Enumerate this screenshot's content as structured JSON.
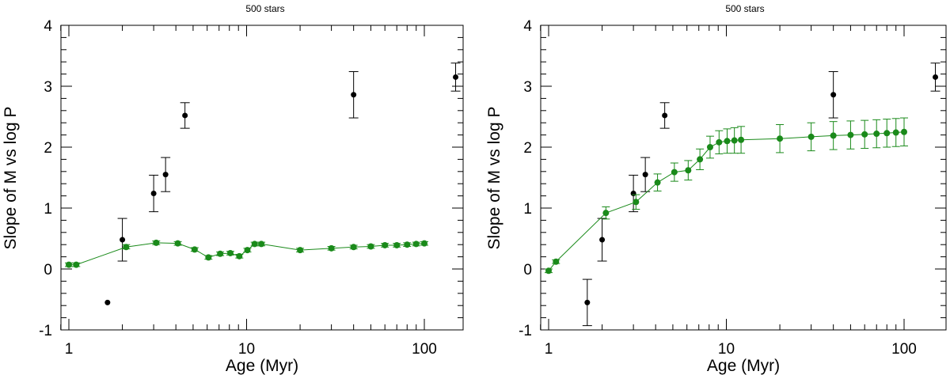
{
  "chart_data": [
    {
      "type": "scatter",
      "title": "500 stars",
      "xlabel": "Age (Myr)",
      "ylabel": "Slope of M vs log P",
      "xscale": "log",
      "xlim": [
        0.9,
        170
      ],
      "ylim": [
        -1,
        4
      ],
      "xticks": [
        1,
        10,
        100
      ],
      "xtick_labels": [
        "1",
        "10",
        "100"
      ],
      "yticks": [
        -1,
        0,
        1,
        2,
        3,
        4
      ],
      "ytick_labels": [
        "-1",
        "0",
        "1",
        "2",
        "3",
        "4"
      ],
      "grid": false,
      "series": [
        {
          "color": "#000000",
          "points": [
            {
              "x": 1.65,
              "y": -0.55,
              "lo": -0.55,
              "hi": -0.55
            },
            {
              "x": 2.0,
              "y": 0.48,
              "lo": 0.13,
              "hi": 0.83
            },
            {
              "x": 3.0,
              "y": 1.24,
              "lo": 0.94,
              "hi": 1.54
            },
            {
              "x": 3.5,
              "y": 1.55,
              "lo": 1.27,
              "hi": 1.83
            },
            {
              "x": 4.5,
              "y": 2.52,
              "lo": 2.31,
              "hi": 2.73
            },
            {
              "x": 40,
              "y": 2.86,
              "lo": 2.48,
              "hi": 3.24
            },
            {
              "x": 150,
              "y": 3.15,
              "lo": 2.92,
              "hi": 3.38
            }
          ]
        },
        {
          "color": "#1a8a1a",
          "connected": true,
          "points": [
            {
              "x": 1.0,
              "y": 0.07,
              "lo": 0.04,
              "hi": 0.1
            },
            {
              "x": 1.1,
              "y": 0.07,
              "lo": 0.04,
              "hi": 0.1
            },
            {
              "x": 2.1,
              "y": 0.36,
              "lo": 0.33,
              "hi": 0.4
            },
            {
              "x": 3.1,
              "y": 0.43,
              "lo": 0.4,
              "hi": 0.46
            },
            {
              "x": 4.1,
              "y": 0.42,
              "lo": 0.39,
              "hi": 0.45
            },
            {
              "x": 5.1,
              "y": 0.32,
              "lo": 0.29,
              "hi": 0.35
            },
            {
              "x": 6.1,
              "y": 0.19,
              "lo": 0.16,
              "hi": 0.22
            },
            {
              "x": 7.1,
              "y": 0.25,
              "lo": 0.22,
              "hi": 0.28
            },
            {
              "x": 8.1,
              "y": 0.26,
              "lo": 0.23,
              "hi": 0.29
            },
            {
              "x": 9.1,
              "y": 0.21,
              "lo": 0.18,
              "hi": 0.24
            },
            {
              "x": 10.1,
              "y": 0.31,
              "lo": 0.28,
              "hi": 0.34
            },
            {
              "x": 11.1,
              "y": 0.41,
              "lo": 0.38,
              "hi": 0.44
            },
            {
              "x": 12.1,
              "y": 0.41,
              "lo": 0.38,
              "hi": 0.44
            },
            {
              "x": 20,
              "y": 0.31,
              "lo": 0.28,
              "hi": 0.34
            },
            {
              "x": 30,
              "y": 0.34,
              "lo": 0.31,
              "hi": 0.37
            },
            {
              "x": 40,
              "y": 0.36,
              "lo": 0.33,
              "hi": 0.39
            },
            {
              "x": 50,
              "y": 0.37,
              "lo": 0.34,
              "hi": 0.4
            },
            {
              "x": 60,
              "y": 0.39,
              "lo": 0.36,
              "hi": 0.42
            },
            {
              "x": 70,
              "y": 0.39,
              "lo": 0.36,
              "hi": 0.42
            },
            {
              "x": 80,
              "y": 0.4,
              "lo": 0.37,
              "hi": 0.43
            },
            {
              "x": 90,
              "y": 0.41,
              "lo": 0.38,
              "hi": 0.44
            },
            {
              "x": 100,
              "y": 0.42,
              "lo": 0.39,
              "hi": 0.45
            }
          ]
        }
      ]
    },
    {
      "type": "scatter",
      "title": "500 stars",
      "xlabel": "Age (Myr)",
      "ylabel": "Slope of M vs log P",
      "xscale": "log",
      "xlim": [
        0.9,
        170
      ],
      "ylim": [
        -1,
        4
      ],
      "xticks": [
        1,
        10,
        100
      ],
      "xtick_labels": [
        "1",
        "10",
        "100"
      ],
      "yticks": [
        -1,
        0,
        1,
        2,
        3,
        4
      ],
      "ytick_labels": [
        "-1",
        "0",
        "1",
        "2",
        "3",
        "4"
      ],
      "grid": false,
      "series": [
        {
          "color": "#000000",
          "points": [
            {
              "x": 1.65,
              "y": -0.55,
              "lo": -0.93,
              "hi": -0.17
            },
            {
              "x": 2.0,
              "y": 0.48,
              "lo": 0.13,
              "hi": 0.83
            },
            {
              "x": 3.0,
              "y": 1.24,
              "lo": 0.94,
              "hi": 1.54
            },
            {
              "x": 3.5,
              "y": 1.55,
              "lo": 1.27,
              "hi": 1.83
            },
            {
              "x": 4.5,
              "y": 2.52,
              "lo": 2.31,
              "hi": 2.73
            },
            {
              "x": 40,
              "y": 2.86,
              "lo": 2.48,
              "hi": 3.24
            },
            {
              "x": 150,
              "y": 3.15,
              "lo": 2.92,
              "hi": 3.38
            }
          ]
        },
        {
          "color": "#1a8a1a",
          "connected": true,
          "points": [
            {
              "x": 1.0,
              "y": -0.03,
              "lo": -0.06,
              "hi": 0.0
            },
            {
              "x": 1.1,
              "y": 0.12,
              "lo": 0.09,
              "hi": 0.15
            },
            {
              "x": 2.1,
              "y": 0.92,
              "lo": 0.82,
              "hi": 1.02
            },
            {
              "x": 3.1,
              "y": 1.1,
              "lo": 0.98,
              "hi": 1.22
            },
            {
              "x": 4.1,
              "y": 1.42,
              "lo": 1.28,
              "hi": 1.56
            },
            {
              "x": 5.1,
              "y": 1.59,
              "lo": 1.44,
              "hi": 1.74
            },
            {
              "x": 6.1,
              "y": 1.62,
              "lo": 1.46,
              "hi": 1.78
            },
            {
              "x": 7.1,
              "y": 1.8,
              "lo": 1.63,
              "hi": 1.97
            },
            {
              "x": 8.1,
              "y": 2.0,
              "lo": 1.82,
              "hi": 2.18
            },
            {
              "x": 9.1,
              "y": 2.08,
              "lo": 1.89,
              "hi": 2.27
            },
            {
              "x": 10.1,
              "y": 2.1,
              "lo": 1.9,
              "hi": 2.3
            },
            {
              "x": 11.1,
              "y": 2.11,
              "lo": 1.9,
              "hi": 2.32
            },
            {
              "x": 12.1,
              "y": 2.12,
              "lo": 1.9,
              "hi": 2.34
            },
            {
              "x": 20,
              "y": 2.14,
              "lo": 1.91,
              "hi": 2.37
            },
            {
              "x": 30,
              "y": 2.17,
              "lo": 1.94,
              "hi": 2.4
            },
            {
              "x": 40,
              "y": 2.19,
              "lo": 1.96,
              "hi": 2.42
            },
            {
              "x": 50,
              "y": 2.2,
              "lo": 1.97,
              "hi": 2.43
            },
            {
              "x": 60,
              "y": 2.21,
              "lo": 1.98,
              "hi": 2.44
            },
            {
              "x": 70,
              "y": 2.22,
              "lo": 1.99,
              "hi": 2.45
            },
            {
              "x": 80,
              "y": 2.23,
              "lo": 2.0,
              "hi": 2.46
            },
            {
              "x": 90,
              "y": 2.24,
              "lo": 2.01,
              "hi": 2.47
            },
            {
              "x": 100,
              "y": 2.25,
              "lo": 2.02,
              "hi": 2.48
            }
          ]
        }
      ]
    }
  ]
}
